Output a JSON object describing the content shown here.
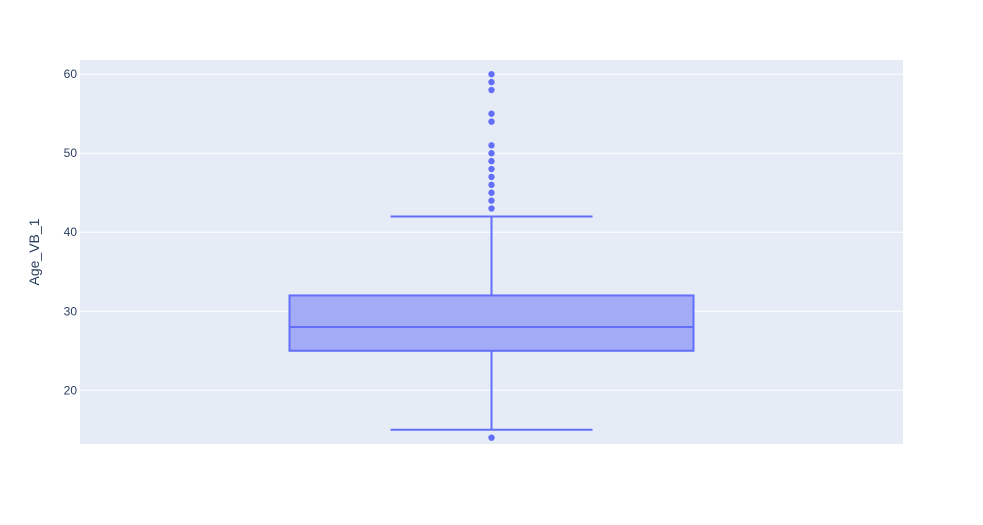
{
  "chart_data": {
    "type": "box",
    "ylabel": "Age_VB_1",
    "xlabel": "",
    "title": "",
    "ylim": [
      13.2,
      61.8
    ],
    "yticks": [
      20,
      30,
      40,
      50,
      60
    ],
    "ytick_labels": [
      "20",
      "30",
      "40",
      "50",
      "60"
    ],
    "grid": true,
    "series": [
      {
        "lower_fence": 15,
        "q1": 25,
        "median": 28,
        "q3": 32,
        "upper_fence": 42,
        "outliers": [
          14,
          43,
          44,
          45,
          46,
          47,
          48,
          49,
          50,
          51,
          54,
          55,
          58,
          59,
          60
        ]
      }
    ],
    "colors": {
      "plot_background": "#e5ecf6",
      "grid": "#ffffff",
      "box_fill": "#a3abf7",
      "box_line": "#636efa",
      "tick_text": "#2a3f5f"
    }
  }
}
